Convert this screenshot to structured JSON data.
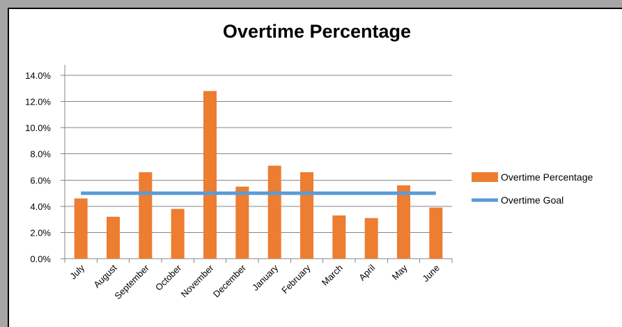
{
  "chart_data": {
    "type": "bar",
    "title": "Overtime Percentage",
    "categories": [
      "July",
      "August",
      "September",
      "October",
      "November",
      "December",
      "January",
      "February",
      "March",
      "April",
      "May",
      "June"
    ],
    "series": [
      {
        "name": "Overtime Percentage",
        "type": "bar",
        "color": "#ed7d31",
        "values": [
          4.6,
          3.2,
          6.6,
          3.8,
          12.8,
          5.5,
          7.1,
          6.6,
          3.3,
          3.1,
          5.6,
          3.9
        ]
      },
      {
        "name": "Overtime Goal",
        "type": "line",
        "color": "#5b9bd5",
        "values": [
          5.0,
          5.0,
          5.0,
          5.0,
          5.0,
          5.0,
          5.0,
          5.0,
          5.0,
          5.0,
          5.0,
          5.0
        ]
      }
    ],
    "ylim": [
      0,
      14
    ],
    "ytick_step": 2,
    "ytick_labels": [
      "0.0%",
      "2.0%",
      "4.0%",
      "6.0%",
      "8.0%",
      "10.0%",
      "12.0%",
      "14.0%"
    ],
    "grid": true,
    "legend_position": "right",
    "xlabel": "",
    "ylabel": ""
  }
}
